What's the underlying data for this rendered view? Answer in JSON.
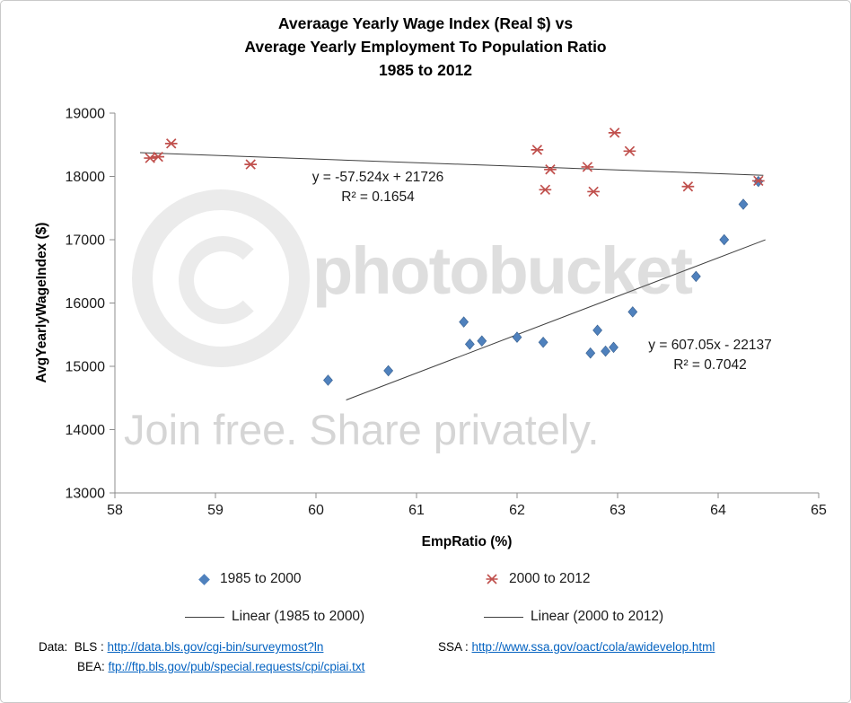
{
  "frame": {
    "background": "#ffffff",
    "border_color": "#c9c9c9"
  },
  "title": {
    "lines": [
      "Averaage Yearly Wage Index (Real $) vs",
      "Average Yearly Employment To Population Ratio",
      "1985 to 2012"
    ]
  },
  "chart_data": {
    "type": "scatter",
    "title": "Averaage Yearly Wage Index (Real $) vs Average Yearly Employment To Population Ratio 1985 to 2012",
    "xlabel": "EmpRatio (%)",
    "ylabel": "AvgYearlyWageIndex ($)",
    "xlim": [
      58,
      65
    ],
    "ylim": [
      13000,
      19000
    ],
    "x_ticks": [
      58,
      59,
      60,
      61,
      62,
      63,
      64,
      65
    ],
    "y_ticks": [
      13000,
      14000,
      15000,
      16000,
      17000,
      18000,
      19000
    ],
    "grid": false,
    "legend_position": "bottom",
    "series": [
      {
        "name": "1985 to 2000",
        "marker": "diamond",
        "color": "#4F81BD",
        "points": [
          [
            60.12,
            14780
          ],
          [
            60.72,
            14930
          ],
          [
            61.47,
            15700
          ],
          [
            61.53,
            15350
          ],
          [
            61.65,
            15400
          ],
          [
            62.0,
            15460
          ],
          [
            62.26,
            15380
          ],
          [
            62.73,
            15210
          ],
          [
            62.8,
            15570
          ],
          [
            62.88,
            15240
          ],
          [
            62.96,
            15300
          ],
          [
            63.15,
            15860
          ],
          [
            63.78,
            16420
          ],
          [
            64.06,
            17000
          ],
          [
            64.25,
            17560
          ],
          [
            64.4,
            17920
          ]
        ]
      },
      {
        "name": "2000 to 2012",
        "marker": "star",
        "color": "#C0504D",
        "points": [
          [
            58.35,
            18290
          ],
          [
            58.43,
            18310
          ],
          [
            58.56,
            18520
          ],
          [
            59.35,
            18190
          ],
          [
            62.2,
            18420
          ],
          [
            62.28,
            17790
          ],
          [
            62.33,
            18110
          ],
          [
            62.7,
            18150
          ],
          [
            62.76,
            17760
          ],
          [
            62.97,
            18690
          ],
          [
            63.12,
            18400
          ],
          [
            63.7,
            17840
          ],
          [
            64.4,
            17930
          ]
        ]
      }
    ],
    "trendlines": [
      {
        "name": "Linear (1985 to 2000)",
        "slope": 607.05,
        "intercept": -22137,
        "x_start": 60.3,
        "x_end": 64.47,
        "equation": "y = 607.05x - 22137",
        "r2_label": "R² = 0.7042",
        "color": "#3f3f3f"
      },
      {
        "name": "Linear (2000 to 2012)",
        "slope": -57.524,
        "intercept": 21726,
        "x_start": 58.25,
        "x_end": 64.45,
        "equation": "y = -57.524x + 21726",
        "r2_label": "R² = 0.1654",
        "color": "#3f3f3f"
      }
    ]
  },
  "watermark": {
    "brand": "photobucket",
    "tagline": "Join free. Share privately."
  },
  "footer": {
    "bls_prefix": "Data:  BLS : ",
    "bls_link": "http://data.bls.gov/cgi-bin/surveymost?ln",
    "ssa_prefix": "SSA : ",
    "ssa_link": "http://www.ssa.gov/oact/cola/awidevelop.html",
    "bea_prefix": "BEA: ",
    "bea_link": "ftp://ftp.bls.gov/pub/special.requests/cpi/cpiai.txt"
  },
  "colors": {
    "series_1985_2000": "#4F81BD",
    "series_2000_2012": "#C0504D",
    "trendline": "#3f3f3f",
    "axis": "#8c8c8c",
    "tick_text": "#1a1a1a",
    "link": "#0563C1"
  }
}
